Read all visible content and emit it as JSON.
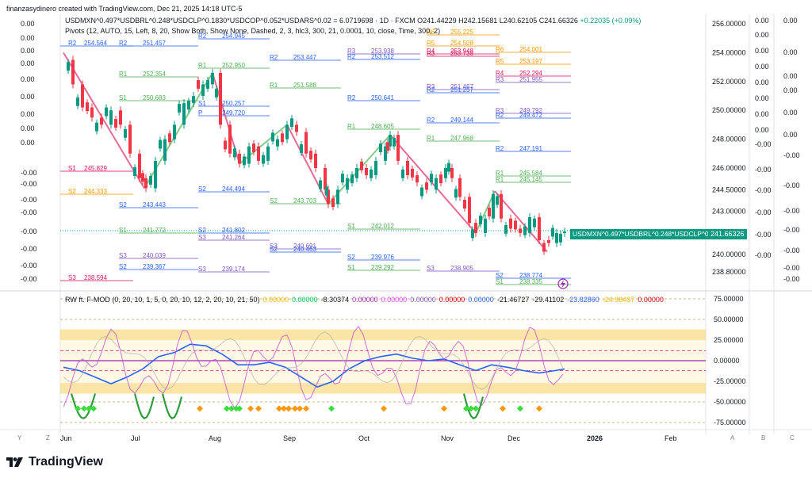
{
  "header": "finanzasydinero created with TradingView.com, Dec 21, 2025 14:18 UTC-5",
  "symbol": {
    "title": "USDMXN^0.497*USDBRL^0.248*USDCLP^0.1830*USDCOP^0.052*USDARS^0.02 = 6.0719698 · 1D · FXCM",
    "open": "O241.44229",
    "high": "H242.15681",
    "low": "L240.62105",
    "close": "C241.66326",
    "change": "+0.22035 (+0.09%)",
    "price_label": "USDMXN^0.497*USDBRL^0.248*USDCLP^0.18…",
    "price_value": "241.66326"
  },
  "pivots_legend": "Pivots (12, AUTO, 15, Left, 8, 20, Show Both, Show None, Dashed, 2, 3, hlc3, 300, 21, 0.0001, 10, close, Time, 300, 2)",
  "rw_legend": {
    "title": "RW ft. F-MOD (0, 20, 10, 1, 5, 0, 20, 10, 12, 2, 20, 10, 21, 50)",
    "values": [
      {
        "text": "0.00000",
        "color": "#f0b400"
      },
      {
        "text": "0.00000",
        "color": "#00c853"
      },
      {
        "text": "-8.30374",
        "color": "#131722"
      },
      {
        "text": "0.00000",
        "color": "#9c27b0"
      },
      {
        "text": "0.00000",
        "color": "#e040fb"
      },
      {
        "text": "0.00000",
        "color": "#7e57c2"
      },
      {
        "text": "0.00000",
        "color": "#d50000"
      },
      {
        "text": "0.00000",
        "color": "#2962ff"
      },
      {
        "text": "-21.46727",
        "color": "#131722"
      },
      {
        "text": "-29.41102",
        "color": "#131722"
      },
      {
        "text": "-23.82860",
        "color": "#2962ff"
      },
      {
        "text": "-24.98437",
        "color": "#f0b400"
      },
      {
        "text": "0.00000",
        "color": "#d50000"
      }
    ]
  },
  "price_axis": [
    "256.00000",
    "254.00000",
    "252.00000",
    "250.00000",
    "248.00000",
    "246.00000",
    "244.50000",
    "243.00000",
    "240.00000",
    "238.80000"
  ],
  "osc_axis": [
    "75.00000",
    "50.00000",
    "25.00000",
    "0.00000",
    "-25.00000",
    "-50.00000",
    "-75.00000"
  ],
  "left_col_values": [
    "0.00",
    "0.00",
    "0.00",
    "0.00",
    "0.00",
    "0.00",
    "0.00",
    "0.00",
    "0.00",
    "-0.00",
    "-0.00",
    "-0.00",
    "-0.00",
    "-0.00",
    "-0.00",
    "-0.00",
    "-0.00",
    "-0.00",
    "-0.00"
  ],
  "right_col1": [
    "0.00",
    "0.00",
    "0.00",
    "0.00",
    "0.00",
    "0.00",
    "0.00",
    "0.00",
    "-0.00",
    "-0.00",
    "-0.00",
    "-0.00",
    "-0.00",
    "-0.00"
  ],
  "right_col2": [
    "0.00",
    "0.00",
    "0.00",
    "0.00",
    "0.00",
    "0.00",
    "-0.00",
    "-0.00",
    "-0.00",
    "-0.00",
    "-0.00",
    "-0.00",
    "-0.00",
    "-0.00"
  ],
  "time_axis": [
    "Jul",
    "Aug",
    "Sep",
    "Oct",
    "Nov",
    "Dec",
    "2026",
    "Feb"
  ],
  "time_first": "Jun",
  "bottom_letters": {
    "y": "Y",
    "z": "Z",
    "a": "A",
    "b": "B",
    "c": "C"
  },
  "brand": "TradingView",
  "colors": {
    "up": "#089981",
    "down": "#f23645",
    "accent": "#089981"
  },
  "pivot_labels": [
    {
      "text": "254.564",
      "c": "#2962ff"
    },
    {
      "text": "251.457",
      "c": "#2962ff"
    },
    {
      "text": "254.945",
      "c": "#2962ff"
    },
    {
      "text": "252.354",
      "c": "#4caf50"
    },
    {
      "text": "252.950",
      "c": "#4caf50"
    },
    {
      "text": "253.447",
      "c": "#2962ff"
    },
    {
      "text": "251.588",
      "c": "#4caf50"
    },
    {
      "text": "253.938",
      "c": "#7e57c2"
    },
    {
      "text": "253.512",
      "c": "#2962ff"
    },
    {
      "text": "255.225",
      "c": "#ff9800"
    },
    {
      "text": "254.508",
      "c": "#ff9800"
    },
    {
      "text": "253.948",
      "c": "#d81b60"
    },
    {
      "text": "253.738",
      "c": "#d81b60"
    },
    {
      "text": "254.001",
      "c": "#ff9800"
    },
    {
      "text": "253.197",
      "c": "#ff9800"
    },
    {
      "text": "252.294",
      "c": "#d81b60"
    },
    {
      "text": "251.955",
      "c": "#7e57c2"
    },
    {
      "text": "250.683",
      "c": "#4caf50"
    },
    {
      "text": "250.257",
      "c": "#2962ff"
    },
    {
      "text": "249.720",
      "c": "#2962ff"
    },
    {
      "text": "250.641",
      "c": "#2962ff"
    },
    {
      "text": "251.467",
      "c": "#7e57c2"
    },
    {
      "text": "251.257",
      "c": "#2962ff"
    },
    {
      "text": "249.144",
      "c": "#2962ff"
    },
    {
      "text": "249.792",
      "c": "#7e57c2"
    },
    {
      "text": "249.472",
      "c": "#2962ff"
    },
    {
      "text": "248.605",
      "c": "#4caf50"
    },
    {
      "text": "247.968",
      "c": "#4caf50"
    },
    {
      "text": "247.191",
      "c": "#2962ff"
    },
    {
      "text": "245.829",
      "c": "#d81b60"
    },
    {
      "text": "244.494",
      "c": "#2962ff"
    },
    {
      "text": "245.584",
      "c": "#4caf50"
    },
    {
      "text": "245.145",
      "c": "#4caf50"
    },
    {
      "text": "244.333",
      "c": "#ff9800"
    },
    {
      "text": "243.443",
      "c": "#2962ff"
    },
    {
      "text": "243.703",
      "c": "#4caf50"
    },
    {
      "text": "241.772",
      "c": "#4caf50"
    },
    {
      "text": "241.802",
      "c": "#2962ff"
    },
    {
      "text": "241.264",
      "c": "#7e57c2"
    },
    {
      "text": "242.012",
      "c": "#4caf50"
    },
    {
      "text": "240.691",
      "c": "#7e57c2"
    },
    {
      "text": "240.463",
      "c": "#2962ff"
    },
    {
      "text": "240.039",
      "c": "#7e57c2"
    },
    {
      "text": "239.367",
      "c": "#2962ff"
    },
    {
      "text": "239.174",
      "c": "#7e57c2"
    },
    {
      "text": "239.976",
      "c": "#2962ff"
    },
    {
      "text": "239.292",
      "c": "#4caf50"
    },
    {
      "text": "238.905",
      "c": "#7e57c2"
    },
    {
      "text": "238.594",
      "c": "#d81b60"
    },
    {
      "text": "238.034",
      "c": "#d81b60"
    },
    {
      "text": "238.774",
      "c": "#2962ff"
    },
    {
      "text": "238.335",
      "c": "#4caf50"
    }
  ]
}
